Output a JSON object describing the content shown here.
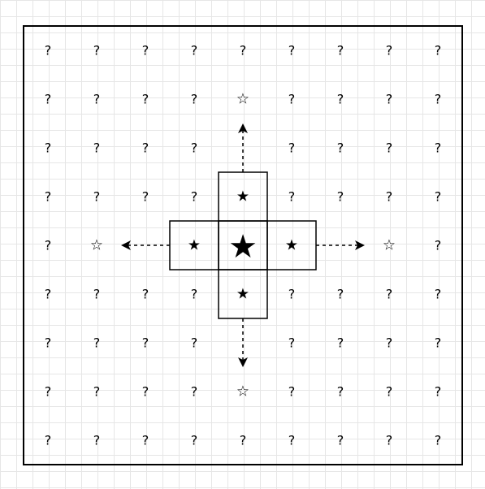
{
  "colors": {
    "stroke": "#000000",
    "grid": "#e6e6e6",
    "background": "#ffffff"
  },
  "grid": {
    "rows": 9,
    "cols": 9,
    "default_symbol": "?",
    "center": [
      4,
      4
    ],
    "cells": [
      {
        "row": 1,
        "col": 4,
        "symbol": "☆",
        "kind": "hollow"
      },
      {
        "row": 3,
        "col": 4,
        "symbol": "★",
        "kind": "small-star",
        "boxed": true
      },
      {
        "row": 4,
        "col": 1,
        "symbol": "☆",
        "kind": "hollow"
      },
      {
        "row": 4,
        "col": 3,
        "symbol": "★",
        "kind": "small-star",
        "boxed": true
      },
      {
        "row": 4,
        "col": 4,
        "symbol": "★",
        "kind": "big-star",
        "boxed": true
      },
      {
        "row": 4,
        "col": 5,
        "symbol": "★",
        "kind": "small-star",
        "boxed": true
      },
      {
        "row": 4,
        "col": 7,
        "symbol": "☆",
        "kind": "hollow"
      },
      {
        "row": 5,
        "col": 4,
        "symbol": "★",
        "kind": "small-star",
        "boxed": true
      },
      {
        "row": 7,
        "col": 4,
        "symbol": "☆",
        "kind": "hollow"
      },
      {
        "row": 2,
        "col": 4,
        "symbol": "",
        "kind": "empty"
      },
      {
        "row": 6,
        "col": 4,
        "symbol": "",
        "kind": "empty"
      },
      {
        "row": 4,
        "col": 2,
        "symbol": "",
        "kind": "empty"
      },
      {
        "row": 4,
        "col": 6,
        "symbol": "",
        "kind": "empty"
      },
      {
        "row": 4,
        "col": 0,
        "symbol": "?",
        "kind": "question"
      },
      {
        "row": 4,
        "col": 8,
        "symbol": "?",
        "kind": "question"
      }
    ],
    "arrows": [
      {
        "direction": "up",
        "from": [
          3,
          4
        ],
        "to": [
          2,
          4
        ],
        "style": "dashed"
      },
      {
        "direction": "down",
        "from": [
          5,
          4
        ],
        "to": [
          6,
          4
        ],
        "style": "dashed"
      },
      {
        "direction": "left",
        "from": [
          4,
          3
        ],
        "to": [
          4,
          2
        ],
        "style": "dashed"
      },
      {
        "direction": "right",
        "from": [
          4,
          5
        ],
        "to": [
          4,
          6
        ],
        "style": "dashed"
      }
    ]
  }
}
